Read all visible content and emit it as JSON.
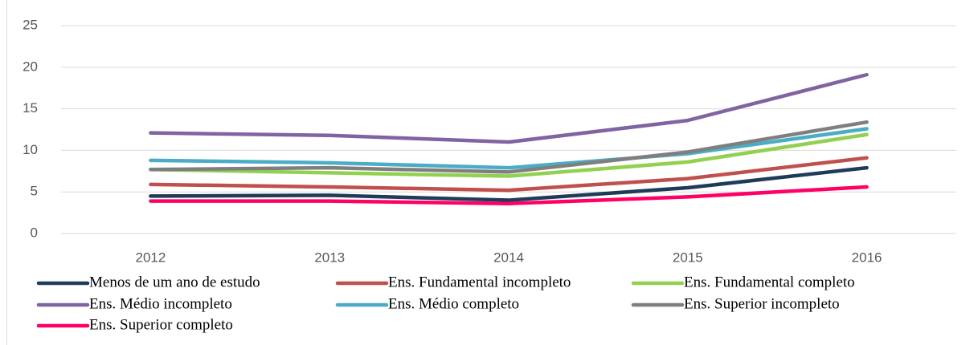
{
  "chart_data": {
    "type": "line",
    "categories": [
      "2012",
      "2013",
      "2014",
      "2015",
      "2016"
    ],
    "series": [
      {
        "name": "Menos de um ano de estudo",
        "color": "#1f3b5a",
        "values": [
          4.5,
          4.6,
          4.0,
          5.5,
          7.9
        ]
      },
      {
        "name": "Ens. Fundamental incompleto",
        "color": "#c0504d",
        "values": [
          5.9,
          5.6,
          5.2,
          6.6,
          9.1
        ]
      },
      {
        "name": "Ens. Fundamental completo",
        "color": "#92d050",
        "values": [
          7.7,
          7.3,
          6.9,
          8.6,
          11.9
        ]
      },
      {
        "name": "Ens. Médio incompleto",
        "color": "#8064a2",
        "values": [
          12.1,
          11.8,
          11.0,
          13.6,
          19.1
        ]
      },
      {
        "name": "Ens. Médio completo",
        "color": "#4bacc6",
        "values": [
          8.8,
          8.5,
          7.9,
          9.6,
          12.6
        ]
      },
      {
        "name": "Ens. Superior incompleto",
        "color": "#7f7f7f",
        "values": [
          7.7,
          7.9,
          7.4,
          9.8,
          13.4
        ]
      },
      {
        "name": "Ens. Superior completo",
        "color": "#ff0066",
        "values": [
          3.9,
          3.9,
          3.6,
          4.4,
          5.6
        ]
      }
    ],
    "ylim": [
      0,
      25
    ],
    "yticks": [
      0,
      5,
      10,
      15,
      20,
      25
    ],
    "grid": true,
    "legend": "bottom"
  }
}
